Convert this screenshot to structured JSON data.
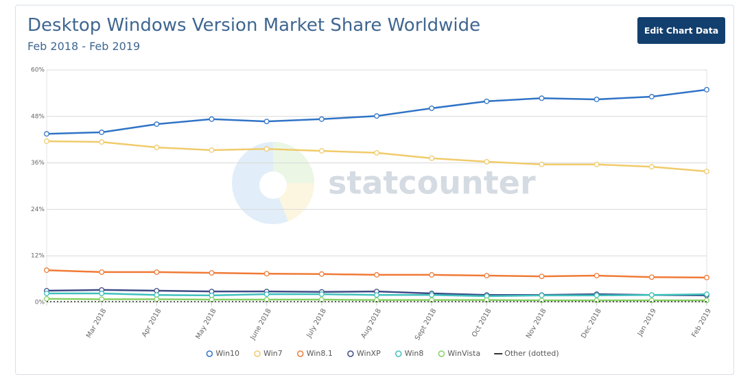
{
  "button": "Edit Chart Data",
  "watermark": "statcounter",
  "chart_data": {
    "type": "line",
    "title": "Desktop Windows Version Market Share Worldwide",
    "subtitle": "Feb 2018 - Feb 2019",
    "categories": [
      null,
      "Mar 2018",
      "Apr 2018",
      "May 2018",
      "June 2018",
      "July 2018",
      "Aug 2018",
      "Sept 2018",
      "Oct 2018",
      "Nov 2018",
      "Dec 2018",
      "Jan 2019",
      "Feb 2019"
    ],
    "ylim": [
      0,
      60
    ],
    "yticks": [
      {
        "value": 0,
        "label": "0%"
      },
      {
        "value": 12,
        "label": "12%"
      },
      {
        "value": 24,
        "label": "24%"
      },
      {
        "value": 36,
        "label": "36%"
      },
      {
        "value": 48,
        "label": "48%"
      },
      {
        "value": 60,
        "label": "60%"
      }
    ],
    "grid": true,
    "legend": "bottom",
    "series": [
      {
        "name": "Win10",
        "color": "#2f73c6",
        "values": [
          43.5,
          43.9,
          46.0,
          47.3,
          46.7,
          47.3,
          48.1,
          50.1,
          51.9,
          52.7,
          52.4,
          53.1,
          54.9
        ]
      },
      {
        "name": "Win7",
        "color": "#f0cb6a",
        "values": [
          41.6,
          41.4,
          40.0,
          39.3,
          39.6,
          39.1,
          38.6,
          37.2,
          36.3,
          35.6,
          35.6,
          35.0,
          33.8
        ]
      },
      {
        "name": "Win8.1",
        "color": "#f07a36",
        "values": [
          8.3,
          7.8,
          7.8,
          7.6,
          7.4,
          7.3,
          7.1,
          7.1,
          6.9,
          6.7,
          6.9,
          6.5,
          6.4
        ]
      },
      {
        "name": "WinXP",
        "color": "#3e4a86",
        "values": [
          3.0,
          3.2,
          3.0,
          2.8,
          2.8,
          2.7,
          2.8,
          2.3,
          1.9,
          1.9,
          2.1,
          1.9,
          1.8
        ]
      },
      {
        "name": "Win8",
        "color": "#3fc0bd",
        "values": [
          2.3,
          2.3,
          1.9,
          1.8,
          2.1,
          2.1,
          1.9,
          1.9,
          1.6,
          1.8,
          1.8,
          1.9,
          2.1
        ]
      },
      {
        "name": "WinVista",
        "color": "#86d063",
        "values": [
          0.9,
          0.8,
          0.8,
          0.7,
          0.7,
          0.7,
          0.6,
          0.6,
          0.6,
          0.5,
          0.5,
          0.5,
          0.5
        ]
      },
      {
        "name": "Other (dotted)",
        "color": "#333333",
        "dotted": true,
        "values": [
          0.2,
          0.2,
          0.2,
          0.2,
          0.2,
          0.2,
          0.2,
          0.2,
          0.2,
          0.2,
          0.2,
          0.2,
          0.2
        ]
      }
    ]
  }
}
